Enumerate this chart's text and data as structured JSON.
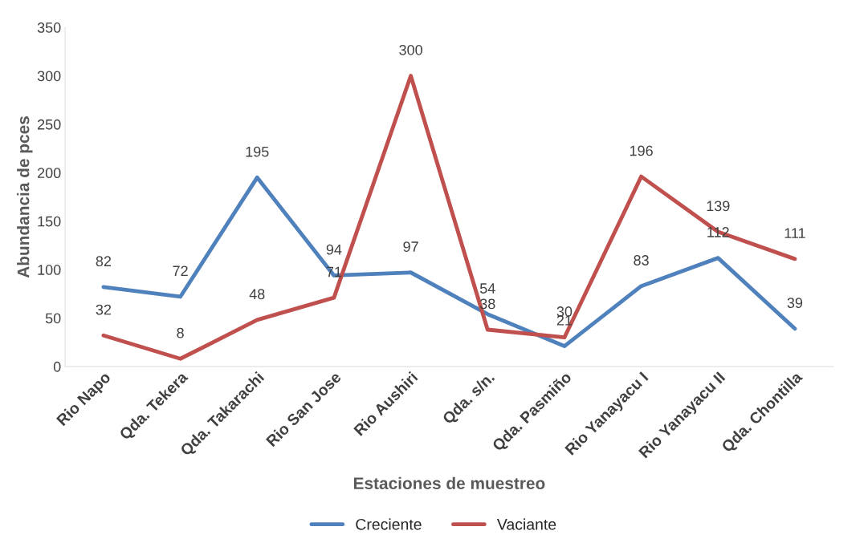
{
  "chart_data": {
    "type": "line",
    "xlabel": "Estaciones de muestreo",
    "ylabel": "Abundancia de pces",
    "categories": [
      "Rio Napo",
      "Qda. Tekera",
      "Qda. Takarachi",
      "Rio San Jose",
      "Rio Aushiri",
      "Qda. s/n.",
      "Qda. Pasmiño",
      "Rio Yanayacu I",
      "Rio Yanayacu II",
      "Qda. Chontilla"
    ],
    "series": [
      {
        "name": "Creciente",
        "color": "#4f81bd",
        "values": [
          82,
          72,
          195,
          94,
          97,
          54,
          21,
          83,
          112,
          39
        ]
      },
      {
        "name": "Vaciante",
        "color": "#c0504d",
        "values": [
          32,
          8,
          48,
          71,
          300,
          38,
          30,
          196,
          139,
          111
        ]
      }
    ],
    "ylim": [
      0,
      350
    ],
    "yticks": [
      0,
      50,
      100,
      150,
      200,
      250,
      300,
      350
    ],
    "grid": false,
    "legend": "bottom",
    "data_labels": true,
    "marker": "none",
    "line_style": "solid"
  }
}
